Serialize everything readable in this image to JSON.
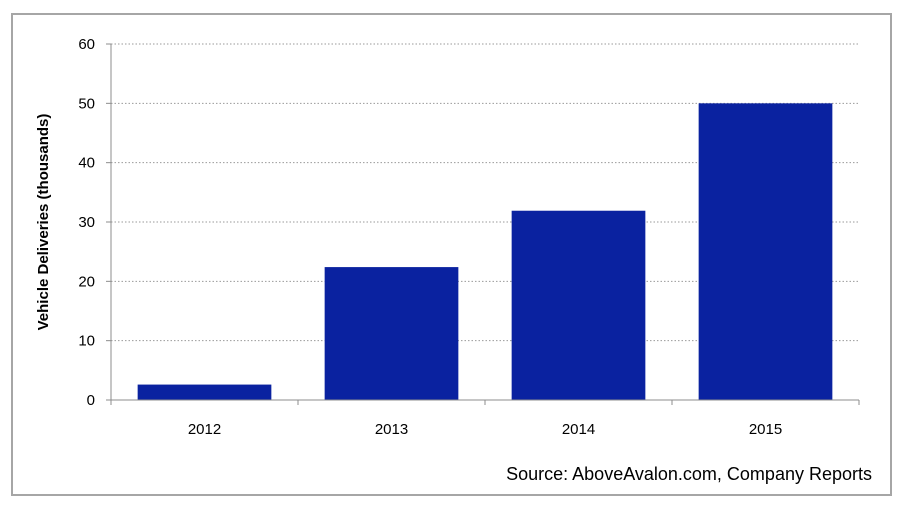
{
  "chart_data": {
    "type": "bar",
    "categories": [
      "2012",
      "2013",
      "2014",
      "2015"
    ],
    "values": [
      2.6,
      22.4,
      31.9,
      50.0
    ],
    "ylabel": "Vehicle Deliveries (thousands)",
    "xlabel": "",
    "ylim": [
      0,
      60
    ],
    "yticks": [
      0,
      10,
      20,
      30,
      40,
      50,
      60
    ],
    "grid": true,
    "grid_style": "dotted",
    "legend": "none",
    "bar_color": "#0A22A0",
    "source_note": "Source: AboveAvalon.com, Company Reports"
  }
}
